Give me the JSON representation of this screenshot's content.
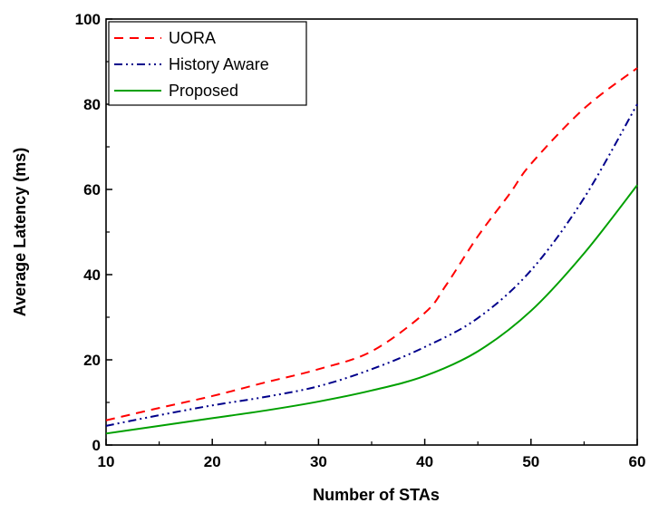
{
  "chart_data": {
    "type": "line",
    "title": "",
    "xlabel": "Number of STAs",
    "ylabel": "Average Latency (ms)",
    "xlim": [
      10,
      60
    ],
    "ylim": [
      0,
      100
    ],
    "xticks": [
      10,
      20,
      30,
      40,
      50,
      60
    ],
    "yticks": [
      0,
      20,
      40,
      60,
      80,
      100
    ],
    "grid": false,
    "legend_position": "top-left",
    "series": [
      {
        "name": "UORA",
        "color": "#ff0000",
        "dash": "dashed",
        "x": [
          10,
          15,
          20,
          25,
          30,
          35,
          40,
          42,
          45,
          48,
          50,
          55,
          60
        ],
        "y": [
          5.8,
          8.7,
          11.5,
          14.7,
          17.8,
          22.0,
          31.0,
          37.5,
          49.0,
          59.0,
          66.0,
          79.0,
          88.5
        ]
      },
      {
        "name": "History Aware",
        "color": "#00008b",
        "dash": "dash-dot-dot",
        "x": [
          10,
          15,
          20,
          25,
          30,
          35,
          40,
          45,
          50,
          55,
          60
        ],
        "y": [
          4.5,
          7.0,
          9.3,
          11.3,
          13.8,
          17.8,
          23.0,
          29.8,
          41.0,
          58.0,
          80.0
        ]
      },
      {
        "name": "Proposed",
        "color": "#00a000",
        "dash": "solid",
        "x": [
          10,
          15,
          20,
          25,
          30,
          35,
          40,
          45,
          50,
          55,
          60
        ],
        "y": [
          2.7,
          4.5,
          6.3,
          8.1,
          10.2,
          12.8,
          16.2,
          22.0,
          31.5,
          45.0,
          61.0
        ]
      }
    ]
  }
}
